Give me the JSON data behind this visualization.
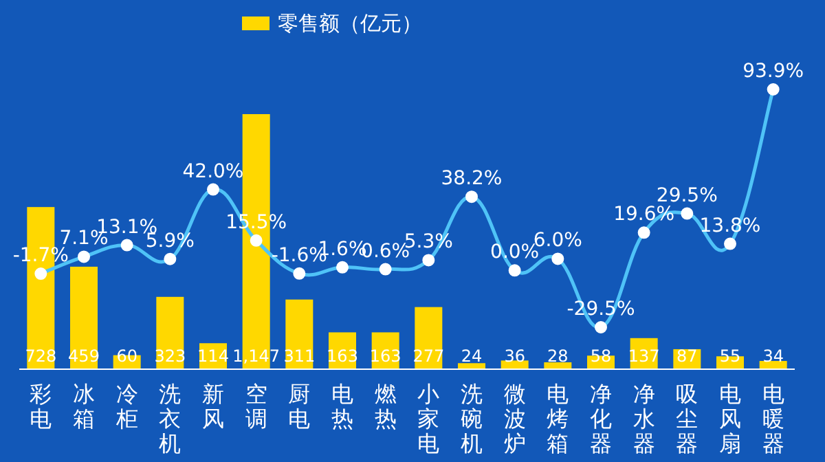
{
  "chart_data": {
    "type": "bar",
    "categories": [
      "彩电",
      "冰箱",
      "冷柜",
      "洗衣机",
      "新风",
      "空调",
      "厨电",
      "电热",
      "燃热",
      "小家电",
      "洗碗机",
      "微波炉",
      "电烤箱",
      "净化器",
      "净水器",
      "吸尘器",
      "电风扇",
      "电暖器"
    ],
    "series": [
      {
        "name": "零售额（亿元）",
        "color": "#ffd800",
        "values": [
          728,
          459,
          60,
          323,
          114,
          1147,
          311,
          163,
          163,
          277,
          24,
          36,
          28,
          58,
          137,
          87,
          55,
          34
        ],
        "value_labels": [
          "728",
          "459",
          "60",
          "323",
          "114",
          "1,147",
          "311",
          "163",
          "163",
          "277",
          "24",
          "36",
          "28",
          "58",
          "137",
          "87",
          "55",
          "34"
        ]
      },
      {
        "type": "line",
        "axis": "y2",
        "color": "#4fc3f7",
        "marker": "circle",
        "values": [
          -1.7,
          7.1,
          13.1,
          5.9,
          42.0,
          15.5,
          -1.6,
          1.6,
          0.6,
          5.3,
          38.2,
          0.0,
          6.0,
          -29.5,
          19.6,
          29.5,
          13.8,
          93.9
        ],
        "value_labels": [
          "-1.7%",
          "7.1%",
          "13.1%",
          "5.9%",
          "42.0%",
          "15.5%",
          "-1.6%",
          "1.6%",
          "0.6%",
          "5.3%",
          "38.2%",
          "0.0%",
          "6.0%",
          "-29.5%",
          "19.6%",
          "29.5%",
          "13.8%",
          "93.9%"
        ]
      }
    ],
    "data_labels": true,
    "legend": "top"
  }
}
